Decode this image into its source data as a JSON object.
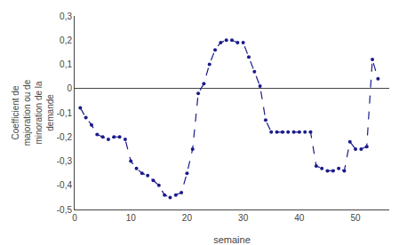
{
  "chart_data": {
    "type": "line",
    "xlabel": "semaine",
    "ylabel": "Coefficient de\nmajoration ou de\nminoration de la\ndemande",
    "x": [
      1,
      2,
      3,
      4,
      5,
      6,
      7,
      8,
      9,
      10,
      11,
      12,
      13,
      14,
      15,
      16,
      17,
      18,
      19,
      20,
      21,
      22,
      23,
      24,
      25,
      26,
      27,
      28,
      29,
      30,
      31,
      32,
      33,
      34,
      35,
      36,
      37,
      38,
      39,
      40,
      41,
      42,
      43,
      44,
      45,
      46,
      47,
      48,
      49,
      50,
      51,
      52,
      53,
      54
    ],
    "values": [
      -0.08,
      -0.12,
      -0.15,
      -0.19,
      -0.2,
      -0.21,
      -0.2,
      -0.2,
      -0.21,
      -0.3,
      -0.33,
      -0.35,
      -0.36,
      -0.38,
      -0.4,
      -0.44,
      -0.45,
      -0.44,
      -0.43,
      -0.35,
      -0.25,
      -0.02,
      0.02,
      0.1,
      0.16,
      0.19,
      0.2,
      0.2,
      0.19,
      0.19,
      0.13,
      0.07,
      0.01,
      -0.13,
      -0.18,
      -0.18,
      -0.18,
      -0.18,
      -0.18,
      -0.18,
      -0.18,
      -0.18,
      -0.32,
      -0.33,
      -0.34,
      -0.34,
      -0.33,
      -0.34,
      -0.22,
      -0.25,
      -0.25,
      -0.24,
      0.12,
      0.04
    ],
    "color": "#1a1a8c",
    "marker": "dot",
    "line_style": "dashed",
    "xlim": [
      0,
      56
    ],
    "xticks": [
      0,
      10,
      20,
      30,
      40,
      50
    ],
    "ylim": [
      -0.5,
      0.3
    ],
    "yticks": [
      {
        "value": -0.5,
        "label": "-0,5"
      },
      {
        "value": -0.4,
        "label": "-0,4"
      },
      {
        "value": -0.3,
        "label": "-0,3"
      },
      {
        "value": -0.2,
        "label": "-0,2"
      },
      {
        "value": -0.1,
        "label": "-0,1"
      },
      0,
      {
        "value": 0.1,
        "label": "0,1"
      },
      {
        "value": 0.2,
        "label": "0,2"
      },
      {
        "value": 0.3,
        "label": "0,3"
      }
    ],
    "grid": false
  }
}
